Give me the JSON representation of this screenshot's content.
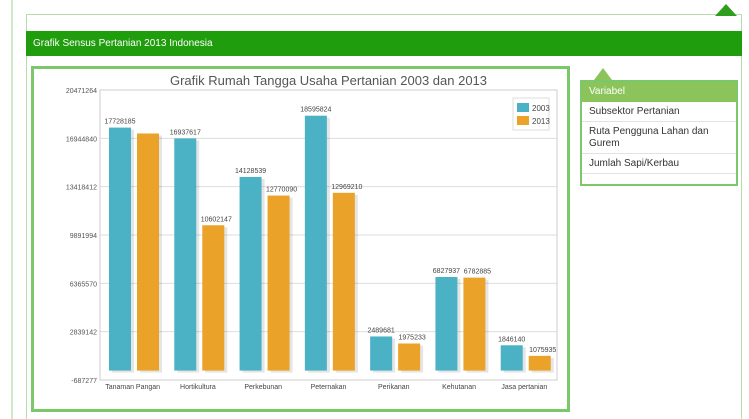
{
  "header": {
    "title": "Grafik Sensus Pertanian 2013 Indonesia"
  },
  "sidebar": {
    "heading": "Variabel",
    "items": [
      {
        "label": "Subsektor Pertanian"
      },
      {
        "label": "Ruta Pengguna Lahan dan Gurem"
      },
      {
        "label": "Jumlah Sapi/Kerbau"
      }
    ]
  },
  "colors": {
    "accent": "#1f9d0c",
    "series_2003": "#4bb2c5",
    "series_2013": "#eaa228"
  },
  "chart_data": {
    "type": "bar",
    "title": "Grafik Rumah Tangga Usaha Pertanian 2003 dan 2013",
    "categories": [
      "Tanaman Pangan",
      "Hortikultura",
      "Perkebunan",
      "Peternakan",
      "Perikanan",
      "Kehutanan",
      "Jasa pertanian"
    ],
    "series": [
      {
        "name": "2003",
        "values": [
          17728185,
          16937617,
          14128539,
          18595824,
          2489681,
          6827937,
          1846140
        ]
      },
      {
        "name": "2013",
        "values": [
          17300000,
          10602147,
          12770090,
          12969210,
          1975233,
          6782885,
          1075935
        ]
      }
    ],
    "data_labels": [
      [
        "17728185",
        "16937617",
        "14128539",
        "18595824",
        "2489681",
        "6827937",
        "1846140"
      ],
      [
        "",
        "10602147",
        "12770090",
        "12969210",
        "1975233",
        "6782885",
        "1075935"
      ]
    ],
    "yticks": [
      "20471264",
      "16944840",
      "13418412",
      "9891994",
      "6365570",
      "2839142",
      "-687277"
    ],
    "ylim": [
      -687277,
      20471264
    ],
    "legend": "top-right",
    "grid": true
  }
}
